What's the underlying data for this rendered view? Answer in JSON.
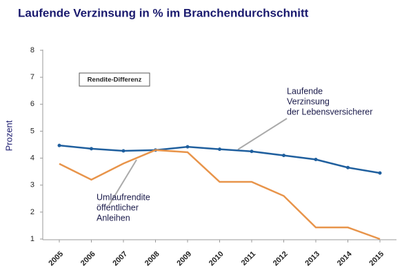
{
  "chart_data": {
    "type": "line",
    "title": "Laufende Verzinsung in % im Branchendurchschnitt",
    "y_label": "Prozent",
    "categories": [
      "2005",
      "2006",
      "2007",
      "2008",
      "2009",
      "2010",
      "2011",
      "2012",
      "2013",
      "2014",
      "2015"
    ],
    "series": [
      {
        "name": "Laufende Verzinsung der Lebensversicherer",
        "color": "#1f5f9e",
        "values": [
          4.47,
          4.35,
          4.27,
          4.3,
          4.42,
          4.33,
          4.25,
          4.1,
          3.95,
          3.65,
          3.45
        ]
      },
      {
        "name": "Umlaufrendite öffentlicher Anleihen",
        "color": "#e8944a",
        "values": [
          3.79,
          3.2,
          3.8,
          4.3,
          4.22,
          3.12,
          3.12,
          2.6,
          1.43,
          1.43,
          1.0
        ]
      }
    ],
    "annotations": {
      "box": "Rendite-Differenz",
      "series_0_lines": [
        "Laufende",
        "Verzinsung",
        "der Lebensversicherer"
      ],
      "series_1_lines": [
        "Umlaufrendite",
        "öffentlicher",
        "Anleihen"
      ]
    },
    "ylim": [
      1,
      8
    ],
    "yticks": [
      1,
      2,
      3,
      4,
      5,
      6,
      7,
      8
    ],
    "grid": false
  }
}
